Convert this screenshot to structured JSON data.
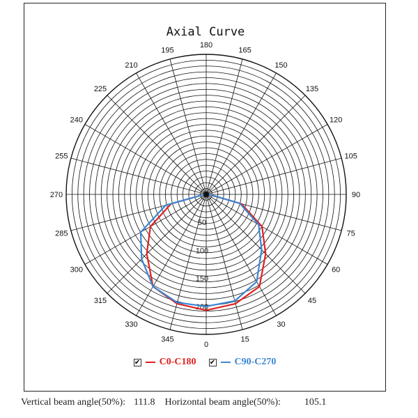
{
  "chart_data": {
    "type": "polar",
    "title": "Axial Curve",
    "angle_labels": [
      "180",
      "165",
      "150",
      "135",
      "120",
      "105",
      "90",
      "75",
      "60",
      "45",
      "30",
      "15",
      "0",
      "345",
      "330",
      "315",
      "300",
      "285",
      "270",
      "255",
      "240",
      "225",
      "210",
      "195"
    ],
    "radial_labels": [
      "50",
      "100",
      "150",
      "200"
    ],
    "radial_max": 250,
    "grid": true,
    "legend_position": "bottom",
    "series": [
      {
        "name": "C0-C180",
        "color": "#e02020",
        "angles": [
          0,
          15,
          30,
          45,
          60,
          75,
          90,
          105,
          270,
          285,
          300,
          315,
          330,
          345
        ],
        "values": [
          207,
          202,
          190,
          150,
          115,
          65,
          5,
          3,
          3,
          65,
          115,
          150,
          190,
          202
        ]
      },
      {
        "name": "C90-C270",
        "color": "#3a86d4",
        "angles": [
          0,
          15,
          30,
          45,
          60,
          75,
          90,
          105,
          270,
          285,
          300,
          315,
          330,
          345
        ],
        "values": [
          200,
          197,
          180,
          140,
          108,
          62,
          5,
          3,
          3,
          75,
          135,
          163,
          190,
          200
        ]
      }
    ]
  },
  "legend": [
    {
      "label": "C0-C180",
      "color": "#e02020",
      "checked": "✔"
    },
    {
      "label": "C90-C270",
      "color": "#3a86d4",
      "checked": "✔"
    }
  ],
  "footer": {
    "vertical_label": "Vertical beam angle(50%):",
    "vertical_value": "111.8",
    "horizontal_label": "Horizontal beam angle(50%):",
    "horizontal_value": "105.1"
  }
}
